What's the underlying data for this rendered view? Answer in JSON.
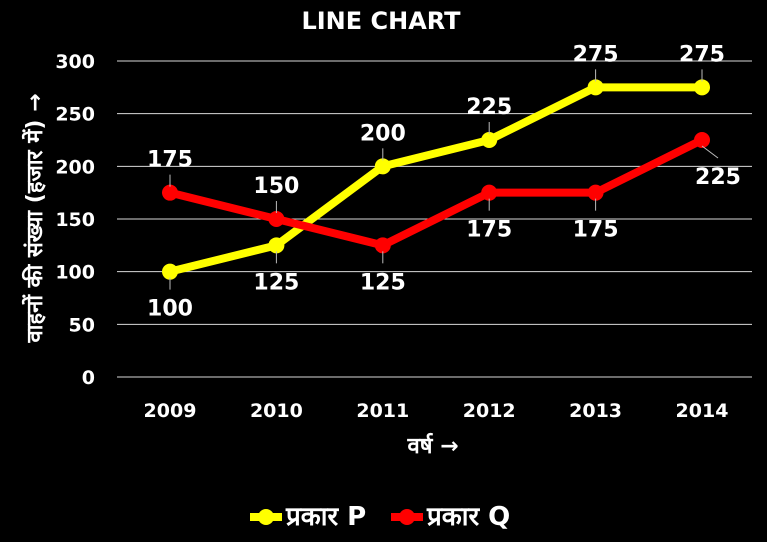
{
  "chart_data": {
    "type": "line",
    "title": "LINE CHART",
    "xlabel": "वर्ष →",
    "ylabel": "वाहनों की संख्या (हजार में) →",
    "categories": [
      "2009",
      "2010",
      "2011",
      "2012",
      "2013",
      "2014"
    ],
    "ylim": [
      0,
      300
    ],
    "yticks": [
      "0",
      "50",
      "100",
      "150",
      "200",
      "250",
      "300"
    ],
    "grid": true,
    "legend_position": "bottom",
    "series": [
      {
        "name": "प्रकार P",
        "color": "#ffff00",
        "values": [
          100,
          125,
          200,
          225,
          275,
          275
        ],
        "labels": [
          "100",
          "125",
          "200",
          "225",
          "275",
          "275"
        ]
      },
      {
        "name": "प्रकार Q",
        "color": "#ff0000",
        "values": [
          175,
          150,
          125,
          175,
          175,
          225
        ],
        "labels": [
          "175",
          "150",
          "125",
          "175",
          "175",
          "225"
        ]
      }
    ]
  }
}
